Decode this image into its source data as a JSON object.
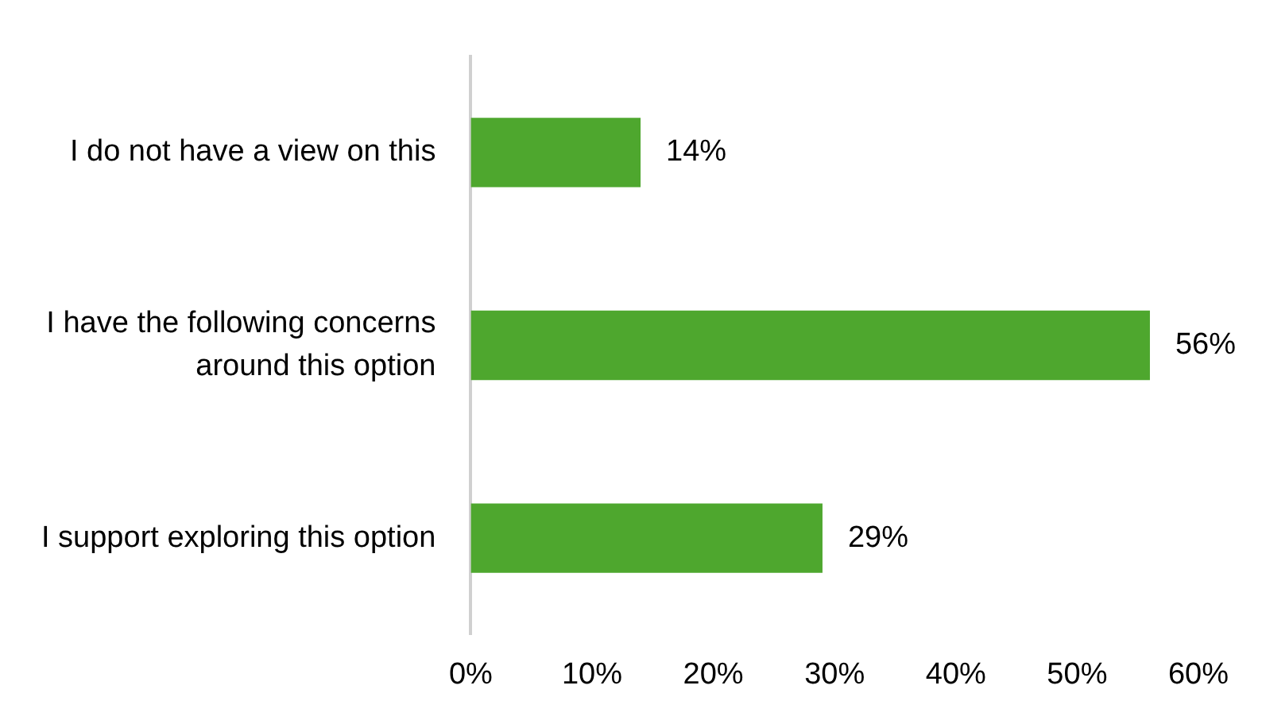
{
  "chart_data": {
    "type": "bar",
    "orientation": "horizontal",
    "categories": [
      "I do not have a view on this",
      "I have the following concerns around this option",
      "I support exploring this option"
    ],
    "values": [
      14,
      56,
      29
    ],
    "color": "#4ea72e",
    "value_labels": [
      "14%",
      "56%",
      "29%"
    ],
    "xlim": [
      0,
      60
    ],
    "xticks": [
      {
        "value": 0,
        "label": "0%"
      },
      {
        "value": 10,
        "label": "10%"
      },
      {
        "value": 20,
        "label": "20%"
      },
      {
        "value": 30,
        "label": "30%"
      },
      {
        "value": 40,
        "label": "40%"
      },
      {
        "value": 50,
        "label": "50%"
      },
      {
        "value": 60,
        "label": "60%"
      }
    ],
    "grid": false,
    "legend": false
  }
}
